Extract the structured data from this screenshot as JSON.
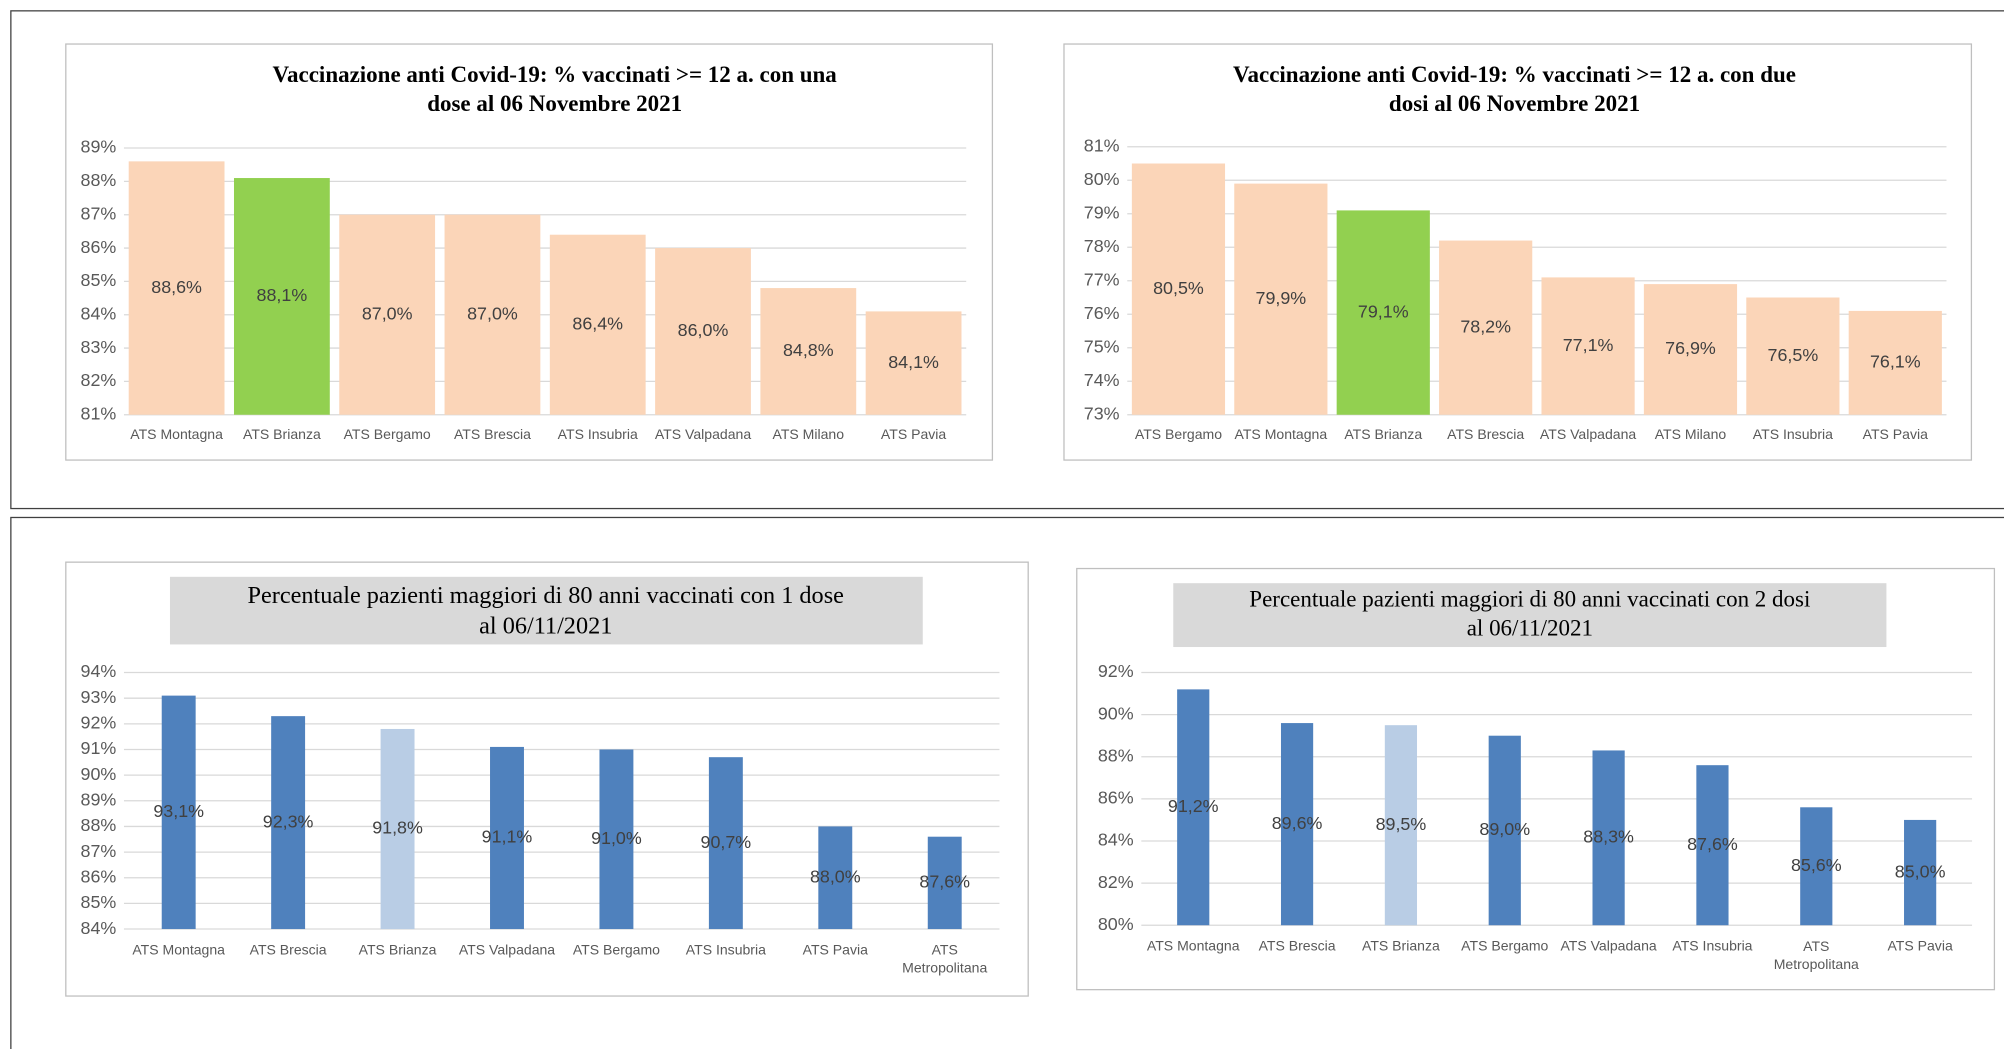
{
  "chart_data": [
    {
      "type": "bar",
      "title": [
        "Vaccinazione anti Covid-19: % vaccinati >= 12 a. con una",
        "dose al 06 Novembre 2021"
      ],
      "categories": [
        "ATS Montagna",
        "ATS Brianza",
        "ATS Bergamo",
        "ATS Brescia",
        "ATS Insubria",
        "ATS Valpadana",
        "ATS Milano",
        "ATS Pavia"
      ],
      "values": [
        88.6,
        88.1,
        87.0,
        87.0,
        86.4,
        86.0,
        84.8,
        84.1
      ],
      "value_labels": [
        "88,6%",
        "88,1%",
        "87,0%",
        "87,0%",
        "86,4%",
        "86,0%",
        "84,8%",
        "84,1%"
      ],
      "colors": [
        "#fbd5b8",
        "#92d050",
        "#fbd5b8",
        "#fbd5b8",
        "#fbd5b8",
        "#fbd5b8",
        "#fbd5b8",
        "#fbd5b8"
      ],
      "ylim": [
        81,
        89
      ],
      "yticks": [
        {
          "value": 81,
          "label": "81%"
        },
        {
          "value": 82,
          "label": "82%"
        },
        {
          "value": 83,
          "label": "83%"
        },
        {
          "value": 84,
          "label": "84%"
        },
        {
          "value": 85,
          "label": "85%"
        },
        {
          "value": 86,
          "label": "86%"
        },
        {
          "value": 87,
          "label": "87%"
        },
        {
          "value": 88,
          "label": "88%"
        },
        {
          "value": 89,
          "label": "89%"
        }
      ],
      "grid": true
    },
    {
      "type": "bar",
      "title": [
        "Vaccinazione anti Covid-19: % vaccinati >= 12 a. con due",
        "dosi al 06 Novembre 2021"
      ],
      "categories": [
        "ATS Bergamo",
        "ATS Montagna",
        "ATS Brianza",
        "ATS Brescia",
        "ATS Valpadana",
        "ATS Milano",
        "ATS Insubria",
        "ATS Pavia"
      ],
      "values": [
        80.5,
        79.9,
        79.1,
        78.2,
        77.1,
        76.9,
        76.5,
        76.1
      ],
      "value_labels": [
        "80,5%",
        "79,9%",
        "79,1%",
        "78,2%",
        "77,1%",
        "76,9%",
        "76,5%",
        "76,1%"
      ],
      "colors": [
        "#fbd5b8",
        "#fbd5b8",
        "#92d050",
        "#fbd5b8",
        "#fbd5b8",
        "#fbd5b8",
        "#fbd5b8",
        "#fbd5b8"
      ],
      "ylim": [
        73,
        81
      ],
      "yticks": [
        {
          "value": 73,
          "label": "73%"
        },
        {
          "value": 74,
          "label": "74%"
        },
        {
          "value": 75,
          "label": "75%"
        },
        {
          "value": 76,
          "label": "76%"
        },
        {
          "value": 77,
          "label": "77%"
        },
        {
          "value": 78,
          "label": "78%"
        },
        {
          "value": 79,
          "label": "79%"
        },
        {
          "value": 80,
          "label": "80%"
        },
        {
          "value": 81,
          "label": "81%"
        }
      ],
      "grid": true
    },
    {
      "type": "bar",
      "title": [
        "Percentuale pazienti maggiori di 80 anni vaccinati con 1 dose",
        "al 06/11/2021"
      ],
      "categories": [
        "ATS Montagna",
        "ATS Brescia",
        "ATS Brianza",
        "ATS Valpadana",
        "ATS Bergamo",
        "ATS Insubria",
        "ATS Pavia",
        "ATS Metropolitana"
      ],
      "values": [
        93.1,
        92.3,
        91.8,
        91.1,
        91.0,
        90.7,
        88.0,
        87.6
      ],
      "value_labels": [
        "93,1%",
        "92,3%",
        "91,8%",
        "91,1%",
        "91,0%",
        "90,7%",
        "88,0%",
        "87,6%"
      ],
      "colors": [
        "#4f81bd",
        "#4f81bd",
        "#b9cde5",
        "#4f81bd",
        "#4f81bd",
        "#4f81bd",
        "#4f81bd",
        "#4f81bd"
      ],
      "ylim": [
        84,
        94
      ],
      "yticks": [
        {
          "value": 84,
          "label": "84%"
        },
        {
          "value": 85,
          "label": "85%"
        },
        {
          "value": 86,
          "label": "86%"
        },
        {
          "value": 87,
          "label": "87%"
        },
        {
          "value": 88,
          "label": "88%"
        },
        {
          "value": 89,
          "label": "89%"
        },
        {
          "value": 90,
          "label": "90%"
        },
        {
          "value": 91,
          "label": "91%"
        },
        {
          "value": 92,
          "label": "92%"
        },
        {
          "value": 93,
          "label": "93%"
        },
        {
          "value": 94,
          "label": "94%"
        }
      ],
      "grid": true
    },
    {
      "type": "bar",
      "title": [
        "Percentuale pazienti maggiori di 80 anni vaccinati con 2 dosi",
        "al 06/11/2021"
      ],
      "categories": [
        "ATS Montagna",
        "ATS Brescia",
        "ATS Brianza",
        "ATS Bergamo",
        "ATS Valpadana",
        "ATS Insubria",
        "ATS Metropolitana",
        "ATS Pavia"
      ],
      "values": [
        91.2,
        89.6,
        89.5,
        89.0,
        88.3,
        87.6,
        85.6,
        85.0
      ],
      "value_labels": [
        "91,2%",
        "89,6%",
        "89,5%",
        "89,0%",
        "88,3%",
        "87,6%",
        "85,6%",
        "85,0%"
      ],
      "colors": [
        "#4f81bd",
        "#4f81bd",
        "#b9cde5",
        "#4f81bd",
        "#4f81bd",
        "#4f81bd",
        "#4f81bd",
        "#4f81bd"
      ],
      "ylim": [
        80,
        92
      ],
      "yticks": [
        {
          "value": 80,
          "label": "80%"
        },
        {
          "value": 82,
          "label": "82%"
        },
        {
          "value": 84,
          "label": "84%"
        },
        {
          "value": 86,
          "label": "86%"
        },
        {
          "value": 88,
          "label": "88%"
        },
        {
          "value": 90,
          "label": "90%"
        },
        {
          "value": 92,
          "label": "92%"
        }
      ],
      "grid": true
    }
  ]
}
